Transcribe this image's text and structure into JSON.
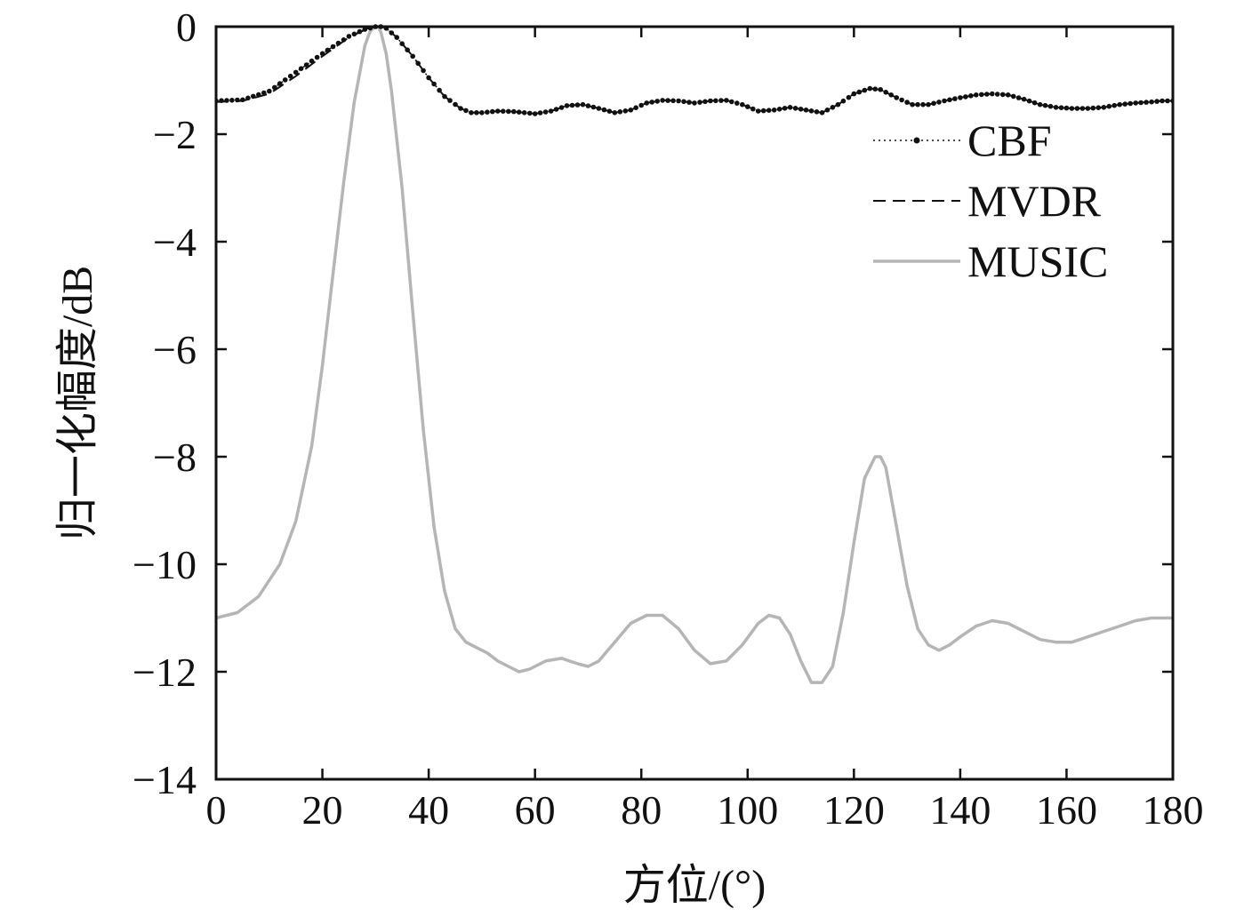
{
  "chart_data": {
    "type": "line",
    "title": "",
    "xlabel": "方位/(°)",
    "ylabel": "归一化幅度/dB",
    "xlim": [
      0,
      180
    ],
    "ylim": [
      -14,
      0
    ],
    "xticks": [
      0,
      20,
      40,
      60,
      80,
      100,
      120,
      140,
      160,
      180
    ],
    "yticks": [
      0,
      -2,
      -4,
      -6,
      -8,
      -10,
      -12,
      -14
    ],
    "xtick_labels": [
      "0",
      "20",
      "40",
      "60",
      "80",
      "100",
      "120",
      "140",
      "160",
      "180"
    ],
    "ytick_labels": [
      "0",
      "−2",
      "−4",
      "−6",
      "−8",
      "−10",
      "−12",
      "−14"
    ],
    "grid": false,
    "legend_position": "top-right",
    "series": [
      {
        "name": "CBF",
        "style": "dotted-markers",
        "color": "#111111",
        "x": [
          0,
          5,
          10,
          15,
          20,
          25,
          28,
          30,
          31,
          32,
          34,
          37,
          40,
          43,
          46,
          48,
          50,
          53,
          56,
          58,
          60,
          63,
          66,
          69,
          72,
          75,
          78,
          81,
          84,
          87,
          90,
          93,
          96,
          99,
          102,
          105,
          108,
          111,
          114,
          117,
          120,
          123,
          125,
          128,
          131,
          134,
          137,
          140,
          143,
          146,
          149,
          152,
          155,
          158,
          161,
          164,
          167,
          170,
          173,
          176,
          178,
          180
        ],
        "y": [
          -1.38,
          -1.36,
          -1.2,
          -0.85,
          -0.5,
          -0.18,
          -0.05,
          0,
          0,
          -0.03,
          -0.2,
          -0.55,
          -0.95,
          -1.3,
          -1.52,
          -1.6,
          -1.6,
          -1.57,
          -1.58,
          -1.6,
          -1.62,
          -1.57,
          -1.47,
          -1.45,
          -1.52,
          -1.6,
          -1.55,
          -1.42,
          -1.37,
          -1.38,
          -1.42,
          -1.38,
          -1.37,
          -1.45,
          -1.57,
          -1.55,
          -1.5,
          -1.55,
          -1.6,
          -1.45,
          -1.25,
          -1.15,
          -1.17,
          -1.32,
          -1.45,
          -1.45,
          -1.38,
          -1.32,
          -1.27,
          -1.25,
          -1.27,
          -1.35,
          -1.45,
          -1.5,
          -1.52,
          -1.52,
          -1.5,
          -1.45,
          -1.42,
          -1.4,
          -1.38,
          -1.38
        ]
      },
      {
        "name": "MVDR",
        "style": "dashed",
        "color": "#111111",
        "x": [
          0,
          5,
          10,
          15,
          20,
          25,
          28,
          30,
          31,
          32,
          34,
          37,
          40,
          43,
          46,
          48,
          50,
          53,
          56,
          58,
          60,
          63,
          66,
          69,
          72,
          75,
          78,
          81,
          84,
          87,
          90,
          93,
          96,
          99,
          102,
          105,
          108,
          111,
          114,
          117,
          120,
          123,
          125,
          128,
          131,
          134,
          137,
          140,
          143,
          146,
          149,
          152,
          155,
          158,
          161,
          164,
          167,
          170,
          173,
          176,
          178,
          180
        ],
        "y": [
          -1.4,
          -1.38,
          -1.25,
          -0.92,
          -0.55,
          -0.2,
          -0.06,
          0,
          0,
          -0.03,
          -0.2,
          -0.55,
          -0.95,
          -1.3,
          -1.52,
          -1.6,
          -1.6,
          -1.57,
          -1.58,
          -1.6,
          -1.62,
          -1.57,
          -1.47,
          -1.45,
          -1.52,
          -1.6,
          -1.55,
          -1.42,
          -1.37,
          -1.38,
          -1.42,
          -1.38,
          -1.37,
          -1.45,
          -1.57,
          -1.55,
          -1.5,
          -1.55,
          -1.6,
          -1.45,
          -1.25,
          -1.15,
          -1.17,
          -1.32,
          -1.45,
          -1.45,
          -1.38,
          -1.32,
          -1.27,
          -1.25,
          -1.27,
          -1.35,
          -1.45,
          -1.5,
          -1.52,
          -1.52,
          -1.5,
          -1.45,
          -1.42,
          -1.4,
          -1.38,
          -1.38
        ]
      },
      {
        "name": "MUSIC",
        "style": "solid",
        "color": "#b5b5b5",
        "x": [
          0,
          4,
          8,
          12,
          15,
          18,
          20,
          22,
          24,
          26,
          28,
          29,
          30,
          30.5,
          31,
          32,
          33,
          35,
          37,
          39,
          41,
          43,
          45,
          47,
          49,
          51,
          53,
          55,
          57,
          59,
          62,
          65,
          68,
          70,
          72,
          75,
          78,
          81,
          84,
          87,
          90,
          93,
          96,
          99,
          102,
          104,
          106,
          108,
          110,
          112,
          114,
          116,
          118,
          120,
          122,
          124,
          125,
          126,
          128,
          130,
          132,
          134,
          136,
          138,
          140,
          143,
          146,
          149,
          152,
          155,
          158,
          161,
          164,
          167,
          170,
          173,
          176,
          178,
          180
        ],
        "y": [
          -11.0,
          -10.9,
          -10.6,
          -10.0,
          -9.2,
          -7.8,
          -6.3,
          -4.6,
          -2.9,
          -1.4,
          -0.35,
          -0.08,
          0,
          0,
          -0.1,
          -0.5,
          -1.2,
          -3.0,
          -5.3,
          -7.5,
          -9.3,
          -10.5,
          -11.2,
          -11.45,
          -11.55,
          -11.65,
          -11.8,
          -11.9,
          -12.0,
          -11.95,
          -11.8,
          -11.75,
          -11.85,
          -11.9,
          -11.8,
          -11.45,
          -11.1,
          -10.95,
          -10.95,
          -11.2,
          -11.6,
          -11.85,
          -11.8,
          -11.5,
          -11.1,
          -10.95,
          -11.0,
          -11.3,
          -11.8,
          -12.2,
          -12.2,
          -11.9,
          -10.9,
          -9.6,
          -8.4,
          -8.0,
          -8.0,
          -8.2,
          -9.3,
          -10.4,
          -11.2,
          -11.5,
          -11.6,
          -11.5,
          -11.35,
          -11.15,
          -11.05,
          -11.1,
          -11.25,
          -11.4,
          -11.45,
          -11.45,
          -11.35,
          -11.25,
          -11.15,
          -11.05,
          -11.0,
          -11.0,
          -11.0
        ]
      }
    ]
  }
}
